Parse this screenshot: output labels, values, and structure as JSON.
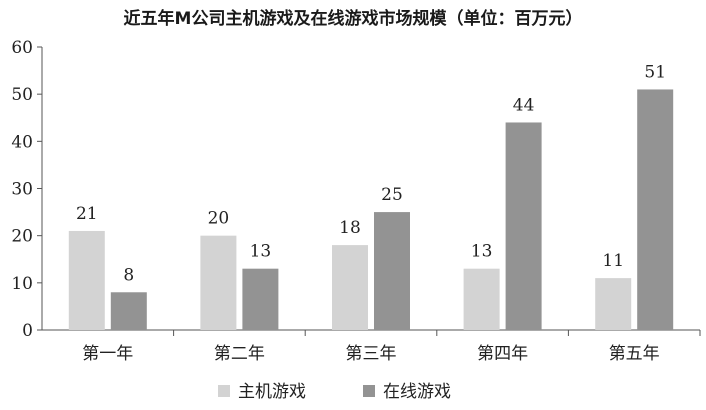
{
  "chart_data": {
    "type": "bar",
    "title": "近五年M公司主机游戏及在线游戏市场规模（单位：百万元）",
    "categories": [
      "第一年",
      "第二年",
      "第三年",
      "第四年",
      "第五年"
    ],
    "series": [
      {
        "name": "主机游戏",
        "values": [
          21,
          20,
          18,
          13,
          11
        ],
        "color": "#d3d3d3"
      },
      {
        "name": "在线游戏",
        "values": [
          8,
          13,
          25,
          44,
          51
        ],
        "color": "#939393"
      }
    ],
    "ylim": [
      0,
      60
    ],
    "yticks": [
      0,
      10,
      20,
      30,
      40,
      50,
      60
    ],
    "grid": false,
    "legend_position": "bottom-center",
    "data_labels": true
  }
}
